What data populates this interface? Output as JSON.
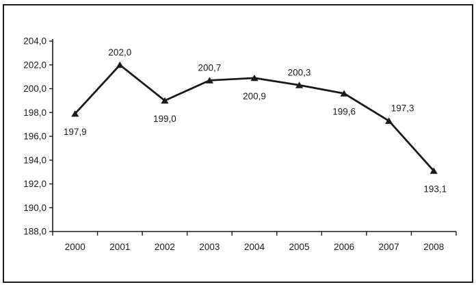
{
  "chart_data": {
    "type": "line",
    "title": "",
    "xlabel": "",
    "ylabel": "",
    "categories": [
      "2000",
      "2001",
      "2002",
      "2003",
      "2004",
      "2005",
      "2006",
      "2007",
      "2008"
    ],
    "series": [
      {
        "name": "",
        "values": [
          197.9,
          202.0,
          199.0,
          200.7,
          200.9,
          200.3,
          199.6,
          197.3,
          193.1
        ]
      }
    ],
    "point_labels": [
      "197,9",
      "202,0",
      "199,0",
      "200,7",
      "200,9",
      "200,3",
      "199,6",
      "197,3",
      "193,1"
    ],
    "point_label_positions": [
      "below",
      "above",
      "below",
      "above",
      "below",
      "above",
      "below",
      "above",
      "below"
    ],
    "point_label_dx": [
      0,
      0,
      0,
      0,
      0,
      0,
      0,
      20,
      2
    ],
    "y_ticks": [
      {
        "value": 204,
        "label": "204,0"
      },
      {
        "value": 202,
        "label": "202,0"
      },
      {
        "value": 200,
        "label": "200,0"
      },
      {
        "value": 198,
        "label": "198,0"
      },
      {
        "value": 196,
        "label": "196,0"
      },
      {
        "value": 194,
        "label": "194,0"
      },
      {
        "value": 192,
        "label": "192,0"
      },
      {
        "value": 190,
        "label": "190,0"
      },
      {
        "value": 188,
        "label": "188,0"
      }
    ],
    "ylim": [
      188,
      204
    ],
    "grid": false,
    "legend": "none",
    "marker": "triangle",
    "colors": {
      "line": "#1a1a1a",
      "marker": "#1a1a1a",
      "text": "#1a1a1a",
      "axis": "#1a1a1a",
      "background": "#ffffff"
    }
  }
}
